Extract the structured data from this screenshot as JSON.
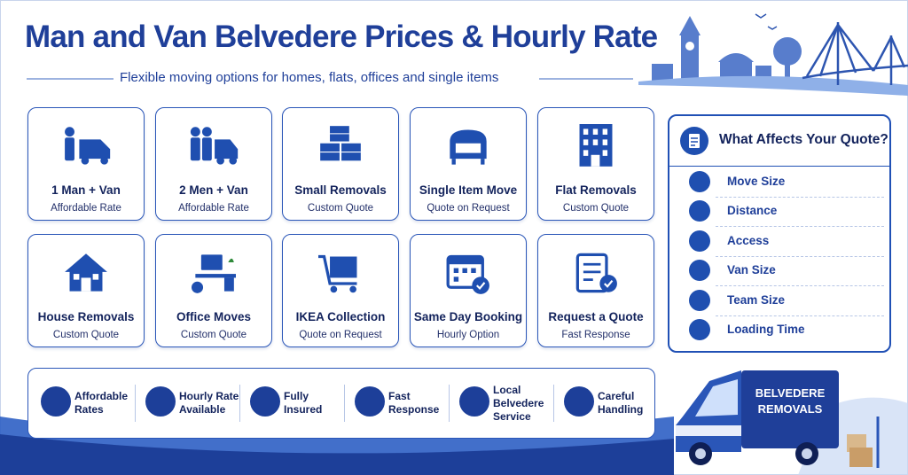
{
  "header": {
    "title": "Man and Van Belvedere Prices & Hourly Rate",
    "subtitle": "Flexible moving options for homes, flats, offices and single items"
  },
  "services": [
    {
      "title": "1 Man + Van",
      "subtitle": "Affordable Rate"
    },
    {
      "title": "2 Men + Van",
      "subtitle": "Affordable Rate"
    },
    {
      "title": "Small Removals",
      "subtitle": "Custom Quote"
    },
    {
      "title": "Single Item Move",
      "subtitle": "Quote on Request"
    },
    {
      "title": "Flat Removals",
      "subtitle": "Custom Quote"
    },
    {
      "title": "House Removals",
      "subtitle": "Custom Quote"
    },
    {
      "title": "Office Moves",
      "subtitle": "Custom Quote"
    },
    {
      "title": "IKEA Collection",
      "subtitle": "Quote on Request"
    },
    {
      "title": "Same Day Booking",
      "subtitle": "Hourly Option"
    },
    {
      "title": "Request a Quote",
      "subtitle": "Fast Response"
    }
  ],
  "quote_factors": {
    "title": "What Affects Your Quote?",
    "items": [
      "Move Size",
      "Distance",
      "Access",
      "Van Size",
      "Team Size",
      "Loading Time"
    ]
  },
  "features": [
    [
      "Affordable",
      "Rates"
    ],
    [
      "Hourly Rate",
      "Available"
    ],
    [
      "Fully",
      "Insured"
    ],
    [
      "Fast",
      "Response"
    ],
    [
      "Local",
      "Belvedere",
      "Service"
    ],
    [
      "Careful",
      "Handling"
    ]
  ],
  "van_text": [
    "BELVEDERE",
    "REMOVALS"
  ]
}
